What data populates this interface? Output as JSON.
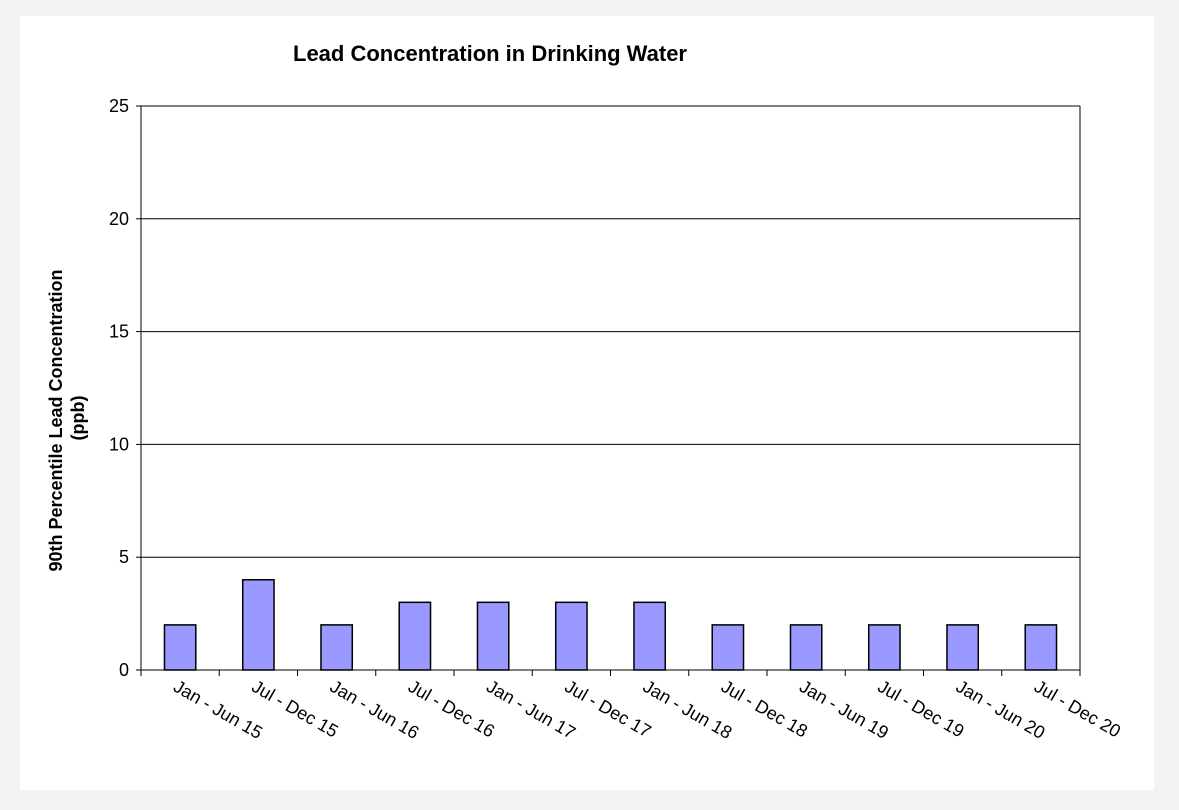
{
  "chart_data": {
    "type": "bar",
    "title": "Lead Concentration in Drinking Water",
    "xlabel": "",
    "ylabel_lines": [
      "90th Percentile Lead Concentration",
      "(ppb)"
    ],
    "categories": [
      "Jan - Jun 15",
      "Jul - Dec 15",
      "Jan - Jun 16",
      "Jul - Dec 16",
      "Jan - Jun 17",
      "Jul - Dec 17",
      "Jan - Jun 18",
      "Jul - Dec 18",
      "Jan - Jun 19",
      "Jul - Dec 19",
      "Jan - Jun 20",
      "Jul - Dec 20"
    ],
    "values": [
      2,
      4,
      2,
      3,
      3,
      3,
      3,
      2,
      2,
      2,
      2,
      2
    ],
    "ylim": [
      0,
      25
    ],
    "yticks": [
      0,
      5,
      10,
      15,
      20,
      25
    ],
    "grid": true,
    "legend": "none",
    "bar_color": "#9999ff"
  }
}
